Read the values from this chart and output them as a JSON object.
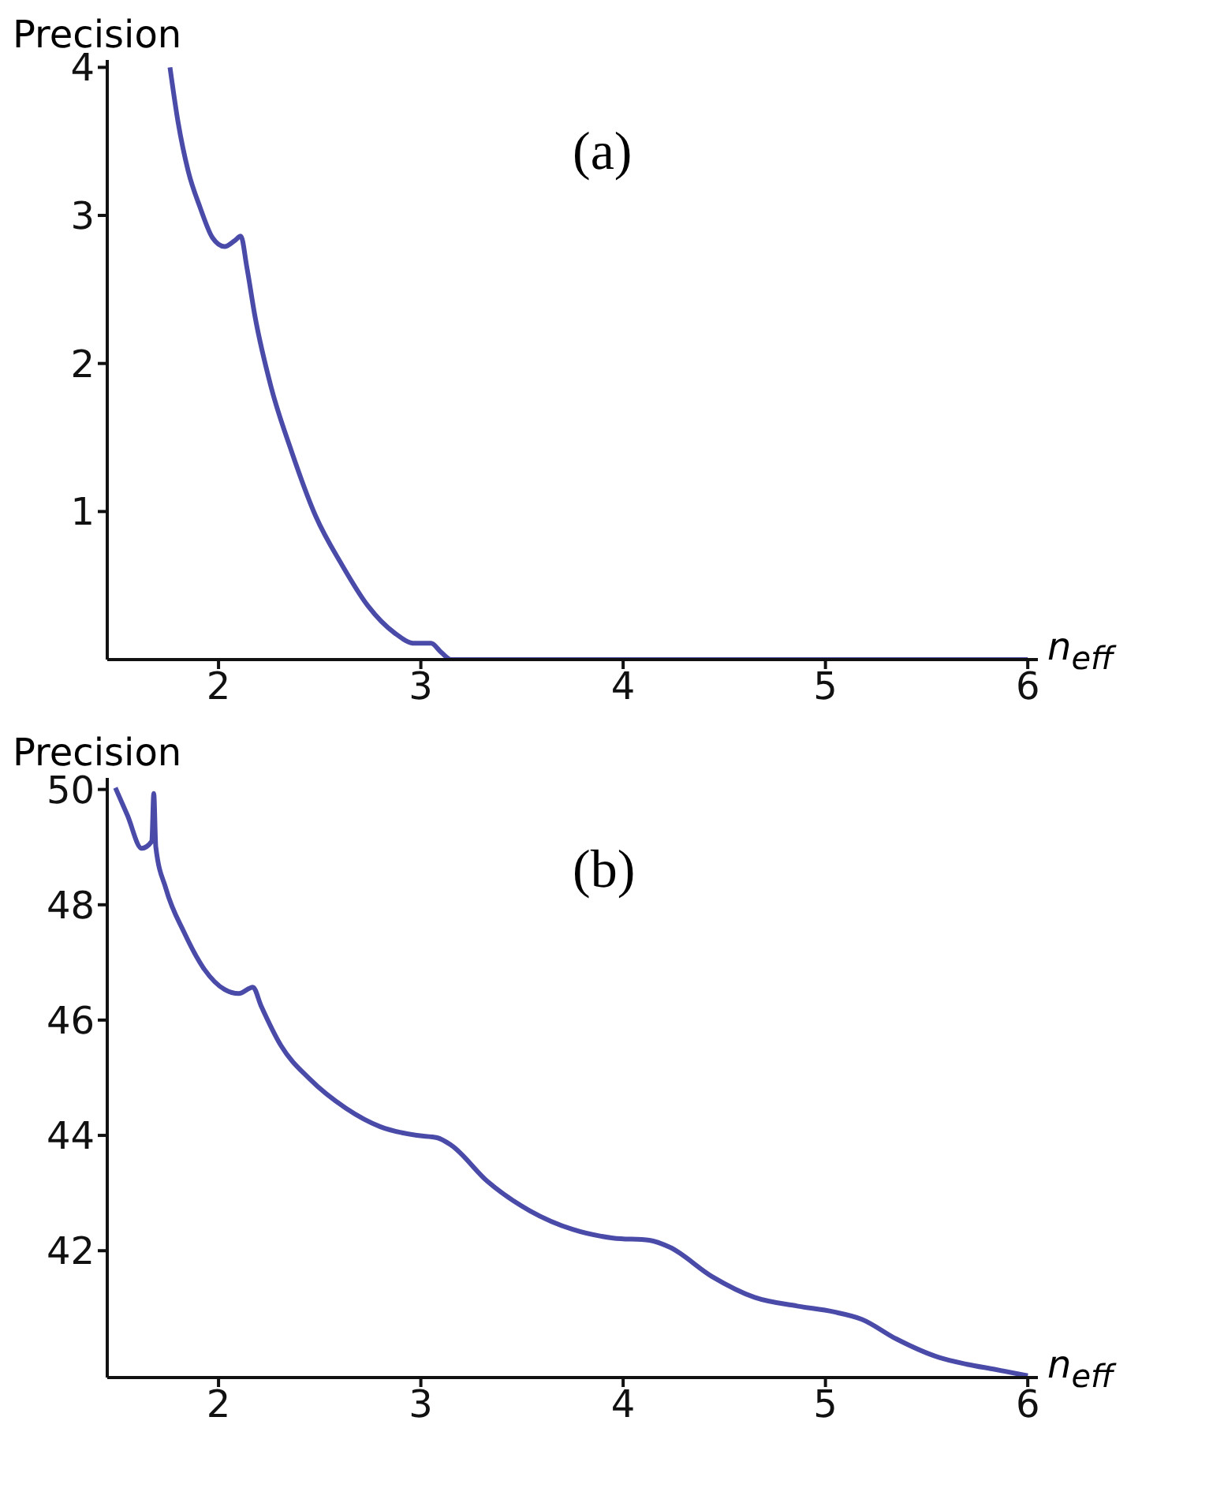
{
  "chart_data": [
    {
      "type": "line",
      "ylabel": "Precision",
      "xlabel": "n$_{eff}$",
      "annotations": [
        "(a)"
      ],
      "series": [
        {
          "color": "#4a4aa8",
          "x": [
            1.76,
            1.8,
            1.85,
            1.91,
            1.97,
            2.03,
            2.08,
            2.11,
            2.14,
            2.18,
            2.26,
            2.36,
            2.48,
            2.61,
            2.74,
            2.87,
            2.97,
            3.05,
            3.1,
            3.15,
            4,
            5,
            6
          ],
          "values": [
            4.0,
            3.63,
            3.3,
            3.05,
            2.85,
            2.79,
            2.83,
            2.86,
            2.65,
            2.32,
            1.84,
            1.41,
            0.97,
            0.64,
            0.36,
            0.18,
            0.11,
            0.11,
            0.05,
            0,
            0,
            0,
            0
          ]
        }
      ],
      "xlim": [
        1.45,
        6.05
      ],
      "xticks": [
        2,
        3,
        4,
        5,
        6
      ],
      "ylim": [
        0,
        4.05
      ],
      "yticks": [
        1,
        2,
        3,
        4
      ],
      "grid": false,
      "marker": "none",
      "line_style": "solid"
    },
    {
      "type": "line",
      "ylabel": "Precision",
      "xlabel": "n$_{eff}$",
      "annotations": [
        "(b)"
      ],
      "series": [
        {
          "color": "#4a4aa8",
          "x": [
            1.49,
            1.55,
            1.62,
            1.67,
            1.68,
            1.69,
            1.74,
            1.83,
            1.93,
            2.03,
            2.1,
            2.17,
            2.21,
            2.31,
            2.45,
            2.63,
            2.8,
            2.98,
            3.08,
            3.15,
            3.33,
            3.54,
            3.75,
            3.95,
            4.13,
            4.23,
            4.44,
            4.65,
            4.86,
            5.04,
            5.18,
            5.35,
            5.56,
            5.7,
            5.84,
            6.0
          ],
          "values": [
            50.03,
            49.55,
            48.98,
            49.1,
            49.93,
            49.0,
            48.28,
            47.52,
            46.88,
            46.53,
            46.46,
            46.57,
            46.25,
            45.55,
            44.98,
            44.47,
            44.15,
            44.0,
            43.96,
            43.83,
            43.2,
            42.69,
            42.37,
            42.22,
            42.18,
            42.06,
            41.55,
            41.19,
            41.04,
            40.94,
            40.81,
            40.47,
            40.15,
            40.03,
            39.94,
            39.83
          ]
        }
      ],
      "xlim": [
        1.45,
        6.05
      ],
      "xticks": [
        2,
        3,
        4,
        5,
        6
      ],
      "ylim": [
        39.8,
        50.2
      ],
      "yticks": [
        42,
        44,
        46,
        48,
        50
      ],
      "grid": false,
      "marker": "none",
      "line_style": "solid"
    }
  ]
}
